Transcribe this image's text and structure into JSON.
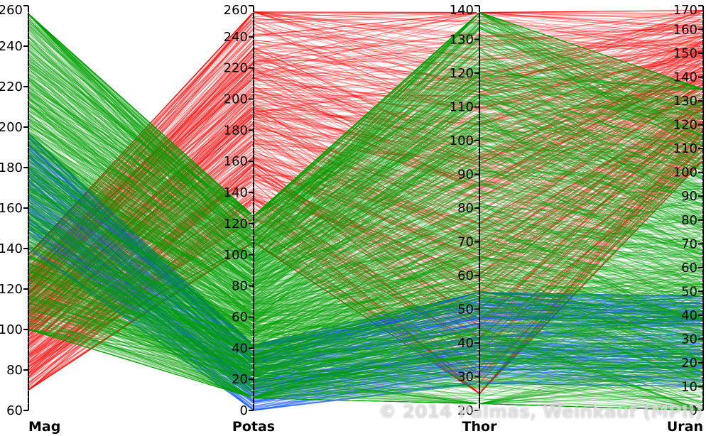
{
  "chart_data": {
    "type": "parallel-coordinates",
    "title": "",
    "axes": [
      {
        "name": "Mag",
        "min": 60,
        "max": 260,
        "ticks": [
          60,
          80,
          100,
          120,
          140,
          160,
          180,
          200,
          220,
          240,
          260
        ]
      },
      {
        "name": "Potas",
        "min": 0,
        "max": 260,
        "ticks": [
          0,
          20,
          40,
          60,
          80,
          100,
          120,
          140,
          160,
          180,
          200,
          220,
          240,
          260
        ]
      },
      {
        "name": "Thor",
        "min": 20,
        "max": 140,
        "ticks": [
          20,
          30,
          40,
          50,
          60,
          70,
          80,
          90,
          100,
          110,
          120,
          130,
          140
        ]
      },
      {
        "name": "Uran",
        "min": 0,
        "max": 170,
        "ticks": [
          0,
          10,
          20,
          30,
          40,
          50,
          60,
          70,
          80,
          90,
          100,
          110,
          120,
          130,
          140,
          150,
          160,
          170
        ]
      }
    ],
    "clusters": [
      {
        "color": "#ff0000",
        "bands": [
          [
            70,
            137
          ],
          [
            108,
            256
          ],
          [
            25,
            138
          ],
          [
            105,
            168
          ]
        ]
      },
      {
        "color": "#0050ff",
        "bands": [
          [
            140,
            197
          ],
          [
            0,
            42
          ],
          [
            28,
            55
          ],
          [
            10,
            48
          ]
        ]
      },
      {
        "color": "#00a000",
        "bands": [
          [
            100,
            256
          ],
          [
            8,
            125
          ],
          [
            22,
            138
          ],
          [
            0,
            135
          ]
        ]
      }
    ],
    "copyright": "© 2014 Palmas, Weinkauf (MPII)"
  }
}
